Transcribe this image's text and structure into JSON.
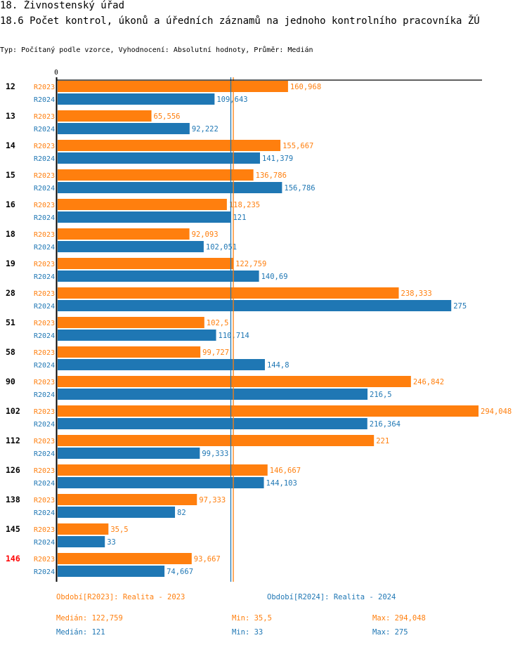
{
  "header": {
    "title": "18. Živnostenský úřad",
    "subtitle": "18.6 Počet kontrol, úkonů a úředních záznamů na jednoho kontrolního pracovníka ŽÚ",
    "info": "Typ: Počítaný podle vzorce, Vyhodnocení: Absolutní hodnoty, Průměr: Medián"
  },
  "colors": {
    "R2023": "#ff7f0e",
    "R2024": "#1f77b4",
    "highlight_category": "#ff0000",
    "axis": "#000000"
  },
  "chart_data": {
    "type": "bar",
    "orientation": "horizontal",
    "title": "18.6 Počet kontrol, úkonů a úředních záznamů na jednoho kontrolního pracovníka ŽÚ",
    "xlabel": "",
    "ylabel": "",
    "x_tick_labels": [
      "0"
    ],
    "xlim": [
      0,
      294.048
    ],
    "grid": false,
    "categories": [
      "12",
      "13",
      "14",
      "15",
      "16",
      "18",
      "19",
      "28",
      "51",
      "58",
      "90",
      "102",
      "112",
      "126",
      "138",
      "145",
      "146"
    ],
    "highlighted_category": "146",
    "series": [
      {
        "name": "R2023",
        "values": [
          160.968,
          65.556,
          155.667,
          136.786,
          118.235,
          92.093,
          122.759,
          238.333,
          102.5,
          99.727,
          246.842,
          294.048,
          221,
          146.667,
          97.333,
          35.5,
          93.667
        ],
        "labels": [
          "160,968",
          "65,556",
          "155,667",
          "136,786",
          "118,235",
          "92,093",
          "122,759",
          "238,333",
          "102,5",
          "99,727",
          "246,842",
          "294,048",
          "221",
          "146,667",
          "97,333",
          "35,5",
          "93,667"
        ]
      },
      {
        "name": "R2024",
        "values": [
          109.643,
          92.222,
          141.379,
          156.786,
          121,
          102.051,
          140.69,
          275,
          110.714,
          144.8,
          216.5,
          216.364,
          99.333,
          144.103,
          82,
          33,
          74.667
        ],
        "labels": [
          "109,643",
          "92,222",
          "141,379",
          "156,786",
          "121",
          "102,051",
          "140,69",
          "275",
          "110,714",
          "144,8",
          "216,5",
          "216,364",
          "99,333",
          "144,103",
          "82",
          "33",
          "74,667"
        ]
      }
    ],
    "reference_lines": [
      {
        "series": "R2023",
        "type": "median",
        "value": 122.759
      },
      {
        "series": "R2024",
        "type": "median",
        "value": 121
      }
    ]
  },
  "legend": {
    "R2023": "Období[R2023]: Realita - 2023",
    "R2024": "Období[R2024]: Realita - 2024"
  },
  "stats": {
    "R2023": {
      "median": "Medián: 122,759",
      "min": "Min: 35,5",
      "max": "Max: 294,048"
    },
    "R2024": {
      "median": "Medián: 121",
      "min": "Min: 33",
      "max": "Max: 275"
    }
  }
}
